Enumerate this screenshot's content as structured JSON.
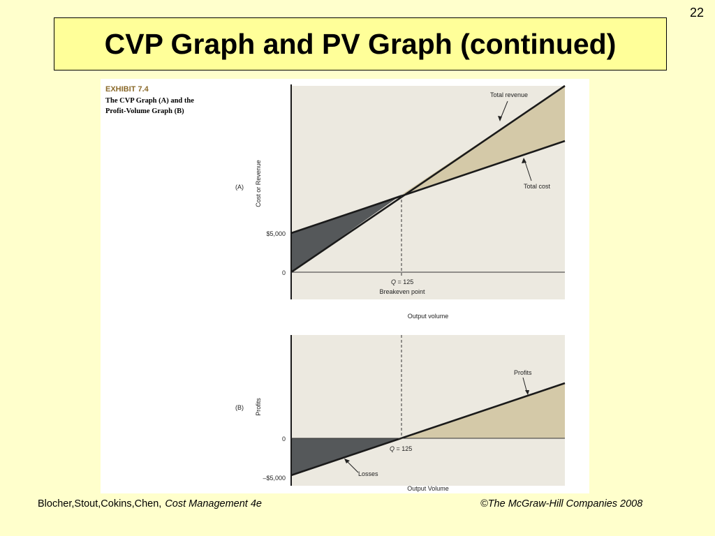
{
  "slide": {
    "number": "22",
    "title": "CVP Graph and PV Graph (continued)"
  },
  "exhibit": {
    "label": "EXHIBIT 7.4",
    "caption_line1": "The CVP Graph (A) and the",
    "caption_line2": "Profit-Volume Graph (B)"
  },
  "graph_a": {
    "panel_label": "(A)",
    "y_axis_label": "Cost or Revenue",
    "tick_5000": "$5,000",
    "tick_0": "0",
    "q_label": "Q",
    "q_value": " = 125",
    "breakeven_label": "Breakeven point",
    "total_revenue_label": "Total revenue",
    "total_cost_label": "Total cost",
    "x_axis_label": "Output volume"
  },
  "graph_b": {
    "panel_label": "(B)",
    "y_axis_label": "Profits",
    "tick_0": "0",
    "tick_neg5000": "–$5,000",
    "q_label": "Q",
    "q_value": " = 125",
    "profits_label": "Profits",
    "losses_label": "Losses",
    "x_axis_label": "Output Volume"
  },
  "footer": {
    "authors": "Blocher,Stout,Cokins,Chen,",
    "book": "Cost Management 4e",
    "copyright": "©The McGraw-Hill Companies 2008"
  },
  "colors": {
    "slide_bg": "#ffffcc",
    "title_bg": "#ffff99",
    "plot_bg": "#ece9e0",
    "loss_fill": "#55585a",
    "profit_fill": "#d4c9a8",
    "exhibit_label": "#8b6a2b"
  }
}
